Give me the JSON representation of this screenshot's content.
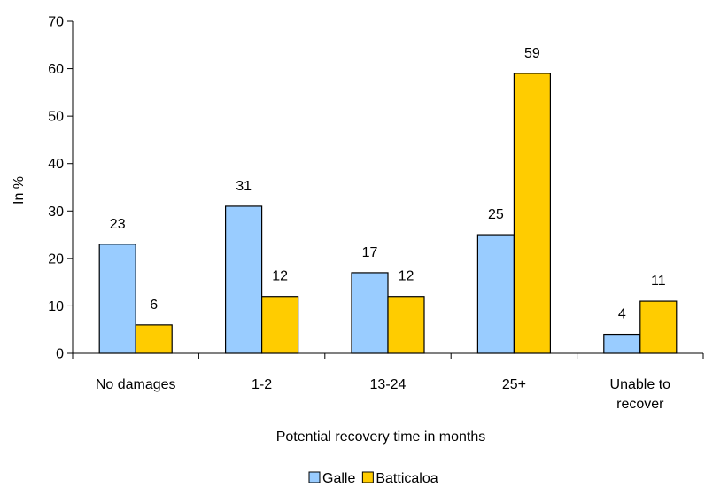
{
  "chart_data": {
    "type": "bar",
    "categories": [
      [
        "No damages"
      ],
      [
        "1-2"
      ],
      [
        "13-24"
      ],
      [
        "25+"
      ],
      [
        "Unable to",
        "recover"
      ]
    ],
    "series": [
      {
        "name": "Galle",
        "values": [
          23,
          31,
          17,
          25,
          4
        ],
        "color": "#99ccff"
      },
      {
        "name": "Batticaloa",
        "values": [
          6,
          12,
          12,
          59,
          11
        ],
        "color": "#ffcc00"
      }
    ],
    "ylim": [
      0,
      70
    ],
    "yticks": [
      0,
      10,
      20,
      30,
      40,
      50,
      60,
      70
    ],
    "xlabel": "Potential recovery time in months",
    "ylabel": "In %",
    "legend_position": "bottom",
    "grid": false
  }
}
